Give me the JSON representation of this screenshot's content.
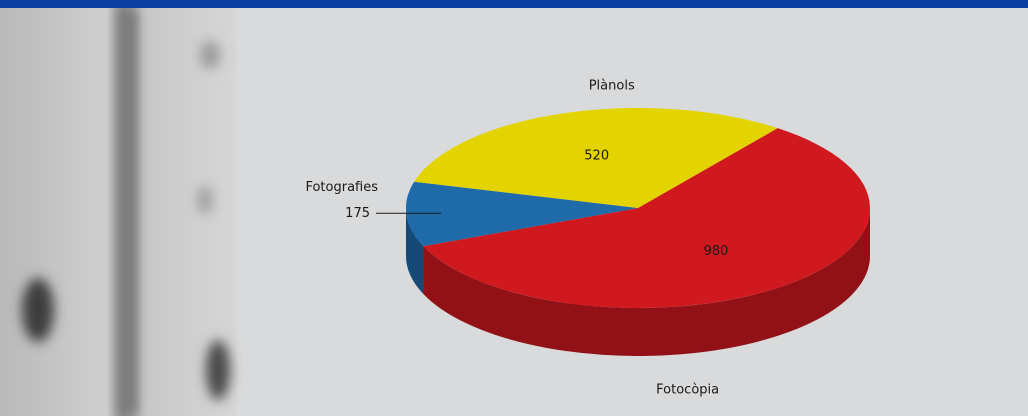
{
  "chart_data": {
    "type": "pie",
    "categories": [
      "Fotocòpia",
      "Fotografies",
      "Plànols"
    ],
    "values": [
      980,
      175,
      520
    ],
    "colors": [
      "#d0181f",
      "#1f6aa8",
      "#e3d400"
    ]
  }
}
